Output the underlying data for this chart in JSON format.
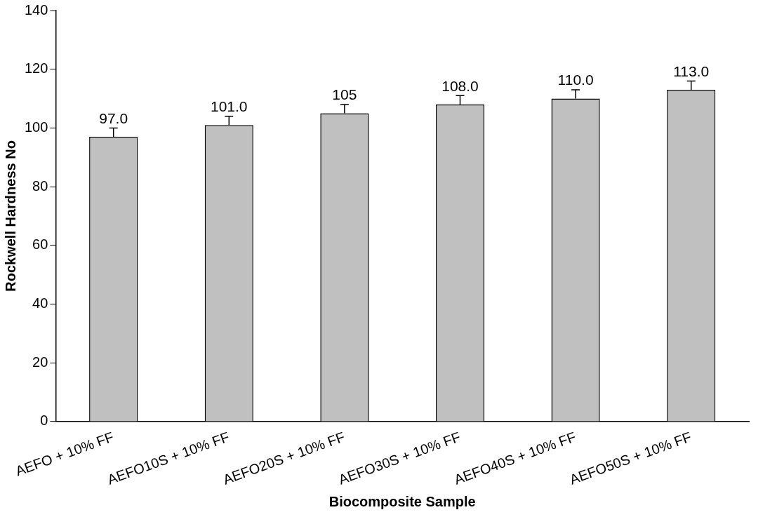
{
  "chart_data": {
    "type": "bar",
    "xlabel": "Biocomposite Sample",
    "ylabel": "Rockwell Hardness No",
    "categories": [
      "AEFO + 10% FF",
      "AEFO10S + 10% FF",
      "AEFO20S + 10% FF",
      "AEFO30S + 10% FF",
      "AEFO40S + 10% FF",
      "AEFO50S + 10% FF"
    ],
    "values": [
      97,
      101,
      105,
      108,
      110,
      113
    ],
    "value_labels": [
      "97.0",
      "101.0",
      "105",
      "108.0",
      "110.0",
      "113.0"
    ],
    "errors": [
      [
        97,
        100
      ],
      [
        101,
        104
      ],
      [
        105,
        108
      ],
      [
        108,
        111
      ],
      [
        110,
        113
      ],
      [
        113,
        116
      ]
    ],
    "color": "#c0c0c0",
    "ylim": [
      0,
      140
    ],
    "yticks": [
      0,
      20,
      40,
      60,
      80,
      100,
      120,
      140
    ],
    "grid": false,
    "legend": false
  }
}
